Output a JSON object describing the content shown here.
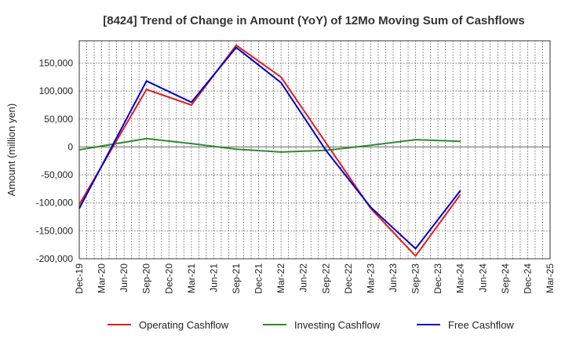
{
  "chart_data": {
    "type": "line",
    "title": "[8424]  Trend of Change in Amount (YoY) of 12Mo Moving Sum of Cashflows",
    "xlabel": "",
    "ylabel": "Amount (million yen)",
    "ylim": [
      -200000,
      190000
    ],
    "yticks": [
      -200000,
      -150000,
      -100000,
      -50000,
      0,
      50000,
      100000,
      150000
    ],
    "ytick_labels": [
      "-200,000",
      "-150,000",
      "-100,000",
      "-50,000",
      "0",
      "50,000",
      "100,000",
      "150,000"
    ],
    "grid": true,
    "legend_position": "bottom",
    "categories": [
      "Dec-19",
      "Mar-20",
      "Jun-20",
      "Sep-20",
      "Dec-20",
      "Mar-21",
      "Jun-21",
      "Sep-21",
      "Dec-21",
      "Mar-22",
      "Jun-22",
      "Sep-22",
      "Dec-22",
      "Mar-23",
      "Jun-23",
      "Sep-23",
      "Dec-23",
      "Mar-24",
      "Jun-24",
      "Sep-24",
      "Dec-24",
      "Mar-25"
    ],
    "series": [
      {
        "name": "Operating Cashflow",
        "color": "#e31a1c",
        "values": [
          -103000,
          null,
          null,
          103000,
          null,
          75000,
          null,
          182000,
          null,
          125000,
          null,
          null,
          null,
          -110000,
          null,
          -195000,
          null,
          -85000,
          null,
          null,
          null,
          null
        ]
      },
      {
        "name": "Investing Cashflow",
        "color": "#2e8b2e",
        "values": [
          -5000,
          null,
          null,
          15000,
          null,
          6000,
          null,
          -4000,
          null,
          -9000,
          null,
          -6000,
          null,
          3000,
          null,
          13000,
          null,
          10000,
          null,
          null,
          null,
          null
        ]
      },
      {
        "name": "Free Cashflow",
        "color": "#0000cc",
        "values": [
          -110000,
          null,
          null,
          118000,
          null,
          80000,
          null,
          178000,
          null,
          115000,
          null,
          -6000,
          null,
          -108000,
          null,
          -182000,
          null,
          -78000,
          null,
          null,
          null,
          null
        ]
      }
    ]
  }
}
